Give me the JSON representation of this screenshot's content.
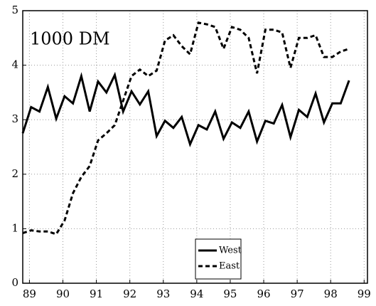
{
  "chart_data": {
    "type": "line",
    "annotation": "1000 DM",
    "x": [
      88.8,
      89.05,
      89.3,
      89.55,
      89.8,
      90.05,
      90.3,
      90.55,
      90.8,
      91.05,
      91.3,
      91.55,
      91.8,
      92.05,
      92.3,
      92.55,
      92.8,
      93.05,
      93.3,
      93.55,
      93.8,
      94.05,
      94.3,
      94.55,
      94.8,
      95.05,
      95.3,
      95.55,
      95.8,
      96.05,
      96.3,
      96.55,
      96.8,
      97.05,
      97.3,
      97.55,
      97.8,
      98.05,
      98.3,
      98.55
    ],
    "series": [
      {
        "name": "West",
        "color": "#000000",
        "dash": "solid",
        "values": [
          2.75,
          3.23,
          3.15,
          3.6,
          3.02,
          3.43,
          3.3,
          3.8,
          3.15,
          3.7,
          3.5,
          3.82,
          3.15,
          3.52,
          3.28,
          3.52,
          2.7,
          2.98,
          2.85,
          3.05,
          2.55,
          2.9,
          2.82,
          3.15,
          2.65,
          2.95,
          2.85,
          3.15,
          2.6,
          2.98,
          2.93,
          3.27,
          2.68,
          3.18,
          3.05,
          3.48,
          2.95,
          3.3,
          3.3,
          3.72
        ]
      },
      {
        "name": "East",
        "color": "#000000",
        "dash": "dashed",
        "values": [
          0.92,
          0.97,
          0.95,
          0.95,
          0.9,
          1.15,
          1.65,
          1.95,
          2.15,
          2.62,
          2.75,
          2.9,
          3.35,
          3.8,
          3.92,
          3.8,
          3.9,
          4.45,
          4.55,
          4.35,
          4.2,
          4.78,
          4.75,
          4.7,
          4.3,
          4.7,
          4.65,
          4.5,
          3.85,
          4.65,
          4.65,
          4.6,
          3.95,
          4.5,
          4.5,
          4.55,
          4.15,
          4.15,
          4.25,
          4.3
        ]
      }
    ],
    "xlim": [
      88.8,
      99.1
    ],
    "xticks": [
      89,
      90,
      91,
      92,
      93,
      94,
      95,
      96,
      97,
      98,
      99
    ],
    "ylim": [
      0,
      5
    ],
    "yticks": [
      0,
      1,
      2,
      3,
      4,
      5
    ],
    "grid": true,
    "legend": "bottom"
  }
}
